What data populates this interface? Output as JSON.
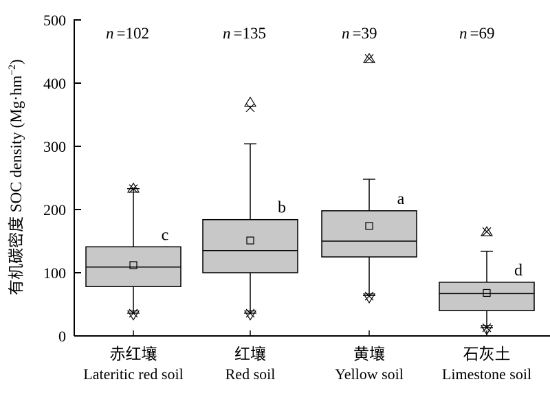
{
  "chart_data": {
    "type": "box",
    "ylabel": "有机碳密度 SOC density (Mg·hm",
    "ylabel_sup": "−2",
    "ylabel_close": ")",
    "ylim": [
      0,
      500
    ],
    "yticks": [
      0,
      100,
      200,
      300,
      400,
      500
    ],
    "n_symbol": "n",
    "categories": [
      {
        "name_zh": "赤红壤",
        "name_en": "Lateritic red soil",
        "n_label": "=102",
        "letter": "c",
        "whisker_low": 36,
        "q1": 78,
        "median": 109,
        "q3": 141,
        "whisker_high": 233,
        "mean": 112,
        "min_marker": 33,
        "max_marker": 234,
        "outliers_x": [
          233,
          36
        ]
      },
      {
        "name_zh": "红壤",
        "name_en": "Red soil",
        "n_label": "=135",
        "letter": "b",
        "whisker_low": 36,
        "q1": 100,
        "median": 135,
        "q3": 184,
        "whisker_high": 304,
        "mean": 151,
        "min_marker": 33,
        "max_marker": 370,
        "outliers_x": [
          361,
          36
        ]
      },
      {
        "name_zh": "黄壤",
        "name_en": "Yellow soil",
        "n_label": "=39",
        "letter": "a",
        "whisker_low": 64,
        "q1": 125,
        "median": 150,
        "q3": 198,
        "whisker_high": 248,
        "mean": 174,
        "min_marker": 60,
        "max_marker": 439,
        "outliers_x": [
          439,
          63
        ]
      },
      {
        "name_zh": "石灰土",
        "name_en": "Limestone soil",
        "n_label": "=69",
        "letter": "d",
        "whisker_low": 13,
        "q1": 40,
        "median": 67,
        "q3": 85,
        "whisker_high": 134,
        "mean": 68,
        "min_marker": 10,
        "max_marker": 165,
        "outliers_x": [
          165,
          13
        ]
      }
    ]
  },
  "colors": {
    "box_fill": "#c8c8c8",
    "stroke": "#000000",
    "background": "#ffffff"
  }
}
